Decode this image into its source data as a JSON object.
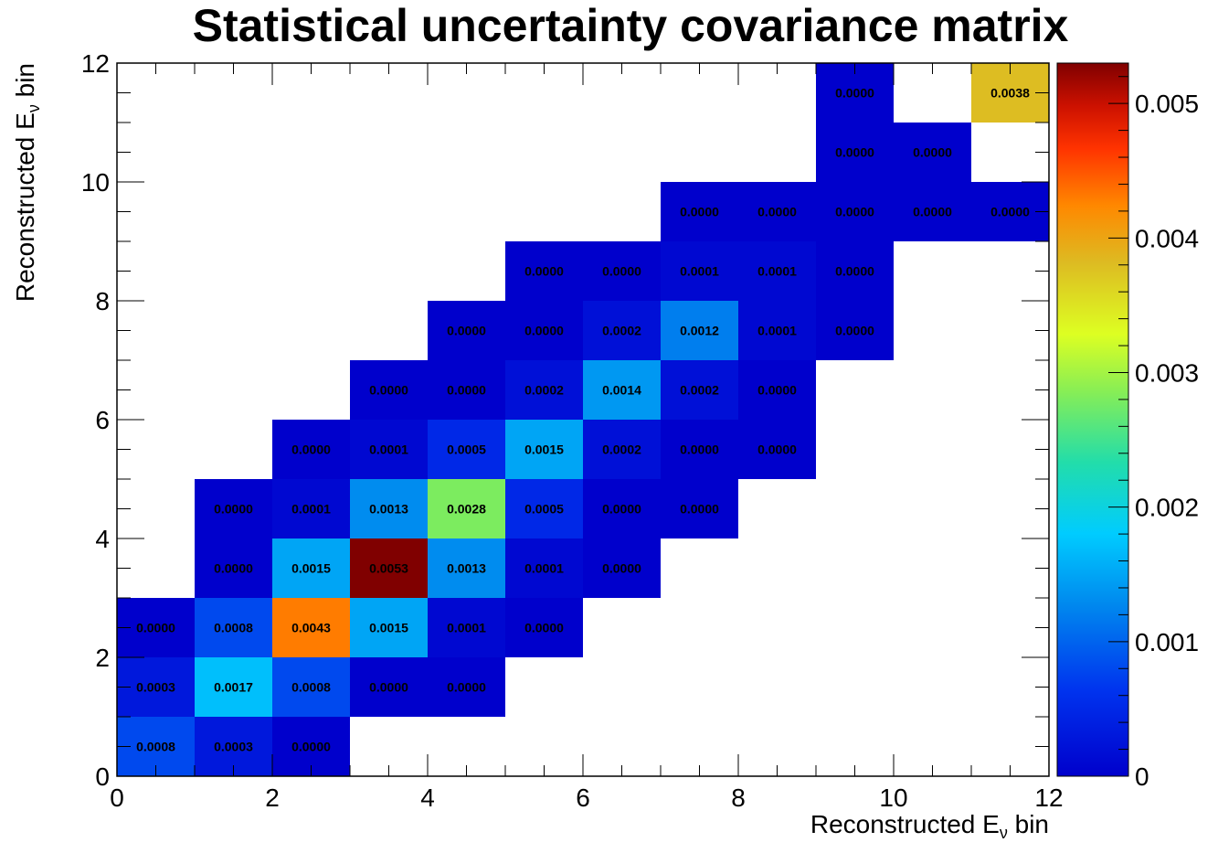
{
  "chart_data": {
    "type": "heatmap",
    "title": "Statistical uncertainty covariance matrix",
    "xlabel": "Reconstructed E",
    "ylabel": "Reconstructed E",
    "label_subscript": "ν",
    "label_suffix": " bin",
    "xlim": [
      0,
      12
    ],
    "ylim": [
      0,
      12
    ],
    "x_ticks": [
      "0",
      "2",
      "4",
      "6",
      "8",
      "10",
      "12"
    ],
    "y_ticks": [
      "0",
      "2",
      "4",
      "6",
      "8",
      "10",
      "12"
    ],
    "colorbar": {
      "min": 0,
      "max": 0.0053,
      "ticks": [
        "0",
        "0.001",
        "0.002",
        "0.003",
        "0.004",
        "0.005"
      ],
      "tick_values": [
        0,
        0.001,
        0.002,
        0.003,
        0.004,
        0.005
      ]
    },
    "cells": [
      {
        "x": 0,
        "y": 0,
        "value": 0.0008,
        "label": "0.0008"
      },
      {
        "x": 1,
        "y": 0,
        "value": 0.0003,
        "label": "0.0003"
      },
      {
        "x": 2,
        "y": 0,
        "value": 0.0,
        "label": "0.0000"
      },
      {
        "x": 0,
        "y": 1,
        "value": 0.0003,
        "label": "0.0003"
      },
      {
        "x": 1,
        "y": 1,
        "value": 0.0017,
        "label": "0.0017"
      },
      {
        "x": 2,
        "y": 1,
        "value": 0.0008,
        "label": "0.0008"
      },
      {
        "x": 3,
        "y": 1,
        "value": 0.0,
        "label": "0.0000"
      },
      {
        "x": 4,
        "y": 1,
        "value": 0.0,
        "label": "0.0000"
      },
      {
        "x": 0,
        "y": 2,
        "value": 0.0,
        "label": "0.0000"
      },
      {
        "x": 1,
        "y": 2,
        "value": 0.0008,
        "label": "0.0008"
      },
      {
        "x": 2,
        "y": 2,
        "value": 0.0043,
        "label": "0.0043"
      },
      {
        "x": 3,
        "y": 2,
        "value": 0.0015,
        "label": "0.0015"
      },
      {
        "x": 4,
        "y": 2,
        "value": 0.0001,
        "label": "0.0001"
      },
      {
        "x": 5,
        "y": 2,
        "value": 0.0,
        "label": "0.0000"
      },
      {
        "x": 1,
        "y": 3,
        "value": 0.0,
        "label": "0.0000"
      },
      {
        "x": 2,
        "y": 3,
        "value": 0.0015,
        "label": "0.0015"
      },
      {
        "x": 3,
        "y": 3,
        "value": 0.0053,
        "label": "0.0053"
      },
      {
        "x": 4,
        "y": 3,
        "value": 0.0013,
        "label": "0.0013"
      },
      {
        "x": 5,
        "y": 3,
        "value": 0.0001,
        "label": "0.0001"
      },
      {
        "x": 6,
        "y": 3,
        "value": 0.0,
        "label": "0.0000"
      },
      {
        "x": 1,
        "y": 4,
        "value": 0.0,
        "label": "0.0000"
      },
      {
        "x": 2,
        "y": 4,
        "value": 0.0001,
        "label": "0.0001"
      },
      {
        "x": 3,
        "y": 4,
        "value": 0.0013,
        "label": "0.0013"
      },
      {
        "x": 4,
        "y": 4,
        "value": 0.0028,
        "label": "0.0028"
      },
      {
        "x": 5,
        "y": 4,
        "value": 0.0005,
        "label": "0.0005"
      },
      {
        "x": 6,
        "y": 4,
        "value": 0.0,
        "label": "0.0000"
      },
      {
        "x": 7,
        "y": 4,
        "value": 0.0,
        "label": "0.0000"
      },
      {
        "x": 2,
        "y": 5,
        "value": 0.0,
        "label": "0.0000"
      },
      {
        "x": 3,
        "y": 5,
        "value": 0.0001,
        "label": "0.0001"
      },
      {
        "x": 4,
        "y": 5,
        "value": 0.0005,
        "label": "0.0005"
      },
      {
        "x": 5,
        "y": 5,
        "value": 0.0015,
        "label": "0.0015"
      },
      {
        "x": 6,
        "y": 5,
        "value": 0.0002,
        "label": "0.0002"
      },
      {
        "x": 7,
        "y": 5,
        "value": 0.0,
        "label": "0.0000"
      },
      {
        "x": 8,
        "y": 5,
        "value": 0.0,
        "label": "0.0000"
      },
      {
        "x": 3,
        "y": 6,
        "value": 0.0,
        "label": "0.0000"
      },
      {
        "x": 4,
        "y": 6,
        "value": 0.0,
        "label": "0.0000"
      },
      {
        "x": 5,
        "y": 6,
        "value": 0.0002,
        "label": "0.0002"
      },
      {
        "x": 6,
        "y": 6,
        "value": 0.0014,
        "label": "0.0014"
      },
      {
        "x": 7,
        "y": 6,
        "value": 0.0002,
        "label": "0.0002"
      },
      {
        "x": 8,
        "y": 6,
        "value": 0.0,
        "label": "0.0000"
      },
      {
        "x": 4,
        "y": 7,
        "value": 0.0,
        "label": "0.0000"
      },
      {
        "x": 5,
        "y": 7,
        "value": 0.0,
        "label": "0.0000"
      },
      {
        "x": 6,
        "y": 7,
        "value": 0.0002,
        "label": "0.0002"
      },
      {
        "x": 7,
        "y": 7,
        "value": 0.0012,
        "label": "0.0012"
      },
      {
        "x": 8,
        "y": 7,
        "value": 0.0001,
        "label": "0.0001"
      },
      {
        "x": 9,
        "y": 7,
        "value": 0.0,
        "label": "0.0000"
      },
      {
        "x": 5,
        "y": 8,
        "value": 0.0,
        "label": "0.0000"
      },
      {
        "x": 6,
        "y": 8,
        "value": 0.0,
        "label": "0.0000"
      },
      {
        "x": 7,
        "y": 8,
        "value": 0.0001,
        "label": "0.0001"
      },
      {
        "x": 8,
        "y": 8,
        "value": 0.0001,
        "label": "0.0001"
      },
      {
        "x": 9,
        "y": 8,
        "value": 0.0,
        "label": "0.0000"
      },
      {
        "x": 7,
        "y": 9,
        "value": 0.0,
        "label": "0.0000"
      },
      {
        "x": 8,
        "y": 9,
        "value": 0.0,
        "label": "0.0000"
      },
      {
        "x": 9,
        "y": 9,
        "value": 0.0,
        "label": "0.0000"
      },
      {
        "x": 10,
        "y": 9,
        "value": 0.0,
        "label": "0.0000"
      },
      {
        "x": 11,
        "y": 9,
        "value": 0.0,
        "label": "0.0000"
      },
      {
        "x": 9,
        "y": 10,
        "value": 0.0,
        "label": "0.0000"
      },
      {
        "x": 10,
        "y": 10,
        "value": 0.0,
        "label": "0.0000"
      },
      {
        "x": 9,
        "y": 11,
        "value": 0.0,
        "label": "0.0000"
      },
      {
        "x": 11,
        "y": 11,
        "value": 0.0038,
        "label": "0.0038"
      }
    ]
  }
}
